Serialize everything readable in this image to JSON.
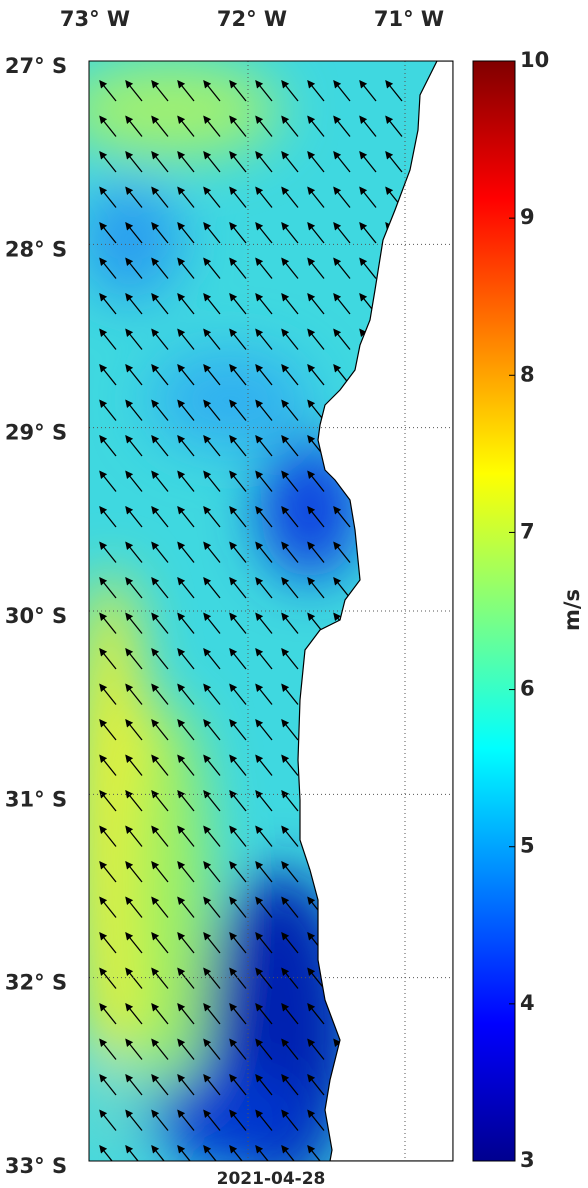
{
  "map": {
    "lon_labels": [
      "73° W",
      "72° W",
      "71° W"
    ],
    "lat_labels": [
      "27° S",
      "28° S",
      "29° S",
      "30° S",
      "31° S",
      "32° S",
      "33° S"
    ],
    "date": "2021-04-28"
  },
  "colorbar": {
    "label": "m/s",
    "lim": [
      3,
      10
    ],
    "ticks": [
      3,
      4,
      5,
      6,
      7,
      8,
      9,
      10
    ]
  }
}
